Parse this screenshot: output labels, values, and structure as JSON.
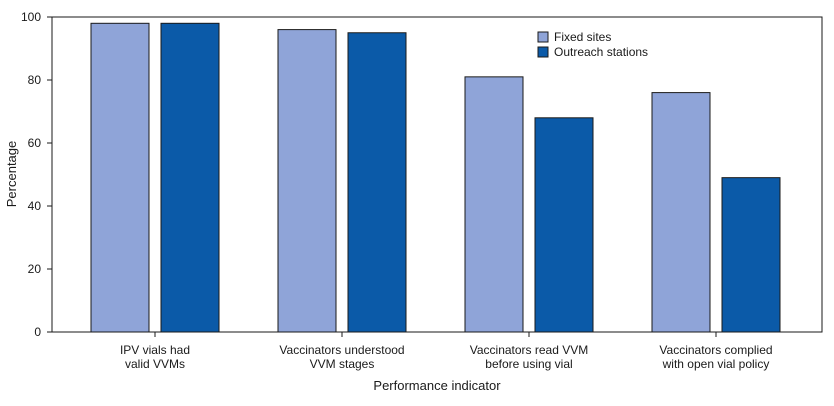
{
  "chart_data": {
    "type": "bar",
    "title": "",
    "xlabel": "Performance indicator",
    "ylabel": "Percentage",
    "ylim": [
      0,
      100
    ],
    "yticks": [
      0,
      20,
      40,
      60,
      80,
      100
    ],
    "grid": false,
    "legend_position": "top-right",
    "categories": [
      [
        "IPV vials had",
        "valid VVMs"
      ],
      [
        "Vaccinators understood",
        "VVM stages"
      ],
      [
        "Vaccinators read VVM",
        "before using vial"
      ],
      [
        "Vaccinators complied",
        "with open vial policy"
      ]
    ],
    "series": [
      {
        "name": "Fixed sites",
        "color": "#8fa4d8",
        "values": [
          98,
          96,
          81,
          76
        ]
      },
      {
        "name": "Outreach stations",
        "color": "#0b5aa8",
        "values": [
          98,
          95,
          68,
          49
        ]
      }
    ]
  }
}
